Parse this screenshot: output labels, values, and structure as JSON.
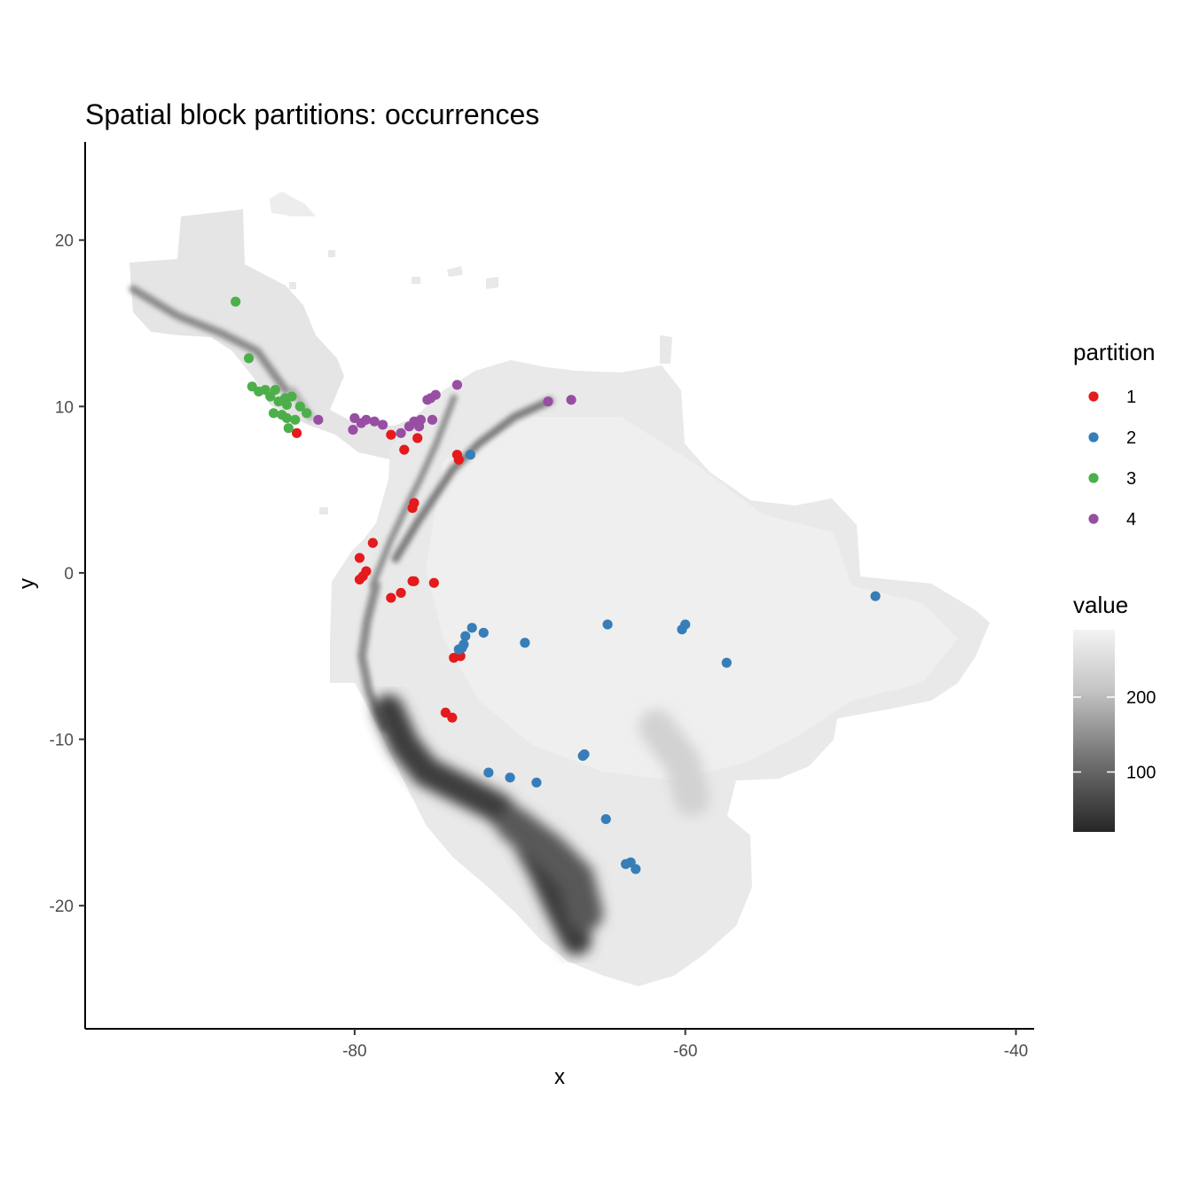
{
  "chart_data": {
    "type": "scatter",
    "title": "Spatial block partitions: occurrences",
    "xlabel": "x",
    "ylabel": "y",
    "xlim": [
      -96.3,
      -38.9
    ],
    "ylim": [
      -27.4,
      25.9
    ],
    "xticks": [
      -80,
      -60,
      -40
    ],
    "yticks": [
      -20,
      -10,
      0,
      10,
      20
    ],
    "grid": false,
    "background_raster": {
      "description_free": true,
      "legend_title": "value",
      "colorbar_ticks": [
        100,
        200
      ],
      "color_low": "#262626",
      "color_high": "#f3f3f3"
    },
    "legend": {
      "title": "partition",
      "position": "right",
      "entries": [
        {
          "label": "1",
          "color": "#e41a1c"
        },
        {
          "label": "2",
          "color": "#377eb8"
        },
        {
          "label": "3",
          "color": "#4daf4a"
        },
        {
          "label": "4",
          "color": "#984ea3"
        }
      ]
    },
    "series": [
      {
        "name": "1",
        "color": "#e41a1c",
        "points": [
          [
            -83.5,
            8.4
          ],
          [
            -77.8,
            8.3
          ],
          [
            -76.2,
            8.1
          ],
          [
            -77.0,
            7.4
          ],
          [
            -73.8,
            7.1
          ],
          [
            -73.7,
            6.8
          ],
          [
            -76.4,
            4.2
          ],
          [
            -76.5,
            3.9
          ],
          [
            -78.9,
            1.8
          ],
          [
            -79.7,
            0.9
          ],
          [
            -79.3,
            0.1
          ],
          [
            -79.5,
            -0.2
          ],
          [
            -79.7,
            -0.4
          ],
          [
            -76.5,
            -0.5
          ],
          [
            -76.4,
            -0.5
          ],
          [
            -75.2,
            -0.6
          ],
          [
            -77.2,
            -1.2
          ],
          [
            -77.8,
            -1.5
          ],
          [
            -74.0,
            -5.1
          ],
          [
            -73.6,
            -5.0
          ],
          [
            -74.5,
            -8.4
          ],
          [
            -74.1,
            -8.7
          ]
        ]
      },
      {
        "name": "2",
        "color": "#377eb8",
        "points": [
          [
            -73.0,
            7.1
          ],
          [
            -72.9,
            -3.3
          ],
          [
            -72.2,
            -3.6
          ],
          [
            -73.3,
            -3.8
          ],
          [
            -73.4,
            -4.3
          ],
          [
            -73.5,
            -4.5
          ],
          [
            -73.7,
            -4.6
          ],
          [
            -69.7,
            -4.2
          ],
          [
            -64.7,
            -3.1
          ],
          [
            -60.2,
            -3.4
          ],
          [
            -60.0,
            -3.1
          ],
          [
            -57.5,
            -5.4
          ],
          [
            -48.5,
            -1.4
          ],
          [
            -66.2,
            -11.0
          ],
          [
            -66.1,
            -10.9
          ],
          [
            -71.9,
            -12.0
          ],
          [
            -70.6,
            -12.3
          ],
          [
            -69.0,
            -12.6
          ],
          [
            -64.8,
            -14.8
          ],
          [
            -63.6,
            -17.5
          ],
          [
            -63.3,
            -17.4
          ],
          [
            -63.0,
            -17.8
          ]
        ]
      },
      {
        "name": "3",
        "color": "#4daf4a",
        "points": [
          [
            -87.2,
            16.3
          ],
          [
            -86.4,
            12.9
          ],
          [
            -86.2,
            11.2
          ],
          [
            -85.8,
            10.9
          ],
          [
            -85.4,
            11.0
          ],
          [
            -84.8,
            11.0
          ],
          [
            -85.1,
            10.6
          ],
          [
            -84.6,
            10.3
          ],
          [
            -84.2,
            10.5
          ],
          [
            -83.8,
            10.6
          ],
          [
            -84.1,
            10.1
          ],
          [
            -83.3,
            10.0
          ],
          [
            -84.9,
            9.6
          ],
          [
            -84.4,
            9.5
          ],
          [
            -84.1,
            9.3
          ],
          [
            -83.6,
            9.2
          ],
          [
            -82.9,
            9.6
          ],
          [
            -84.0,
            8.7
          ]
        ]
      },
      {
        "name": "4",
        "color": "#984ea3",
        "points": [
          [
            -82.2,
            9.2
          ],
          [
            -80.0,
            9.3
          ],
          [
            -79.6,
            9.0
          ],
          [
            -79.3,
            9.2
          ],
          [
            -78.8,
            9.1
          ],
          [
            -78.3,
            8.9
          ],
          [
            -80.1,
            8.6
          ],
          [
            -77.2,
            8.4
          ],
          [
            -76.7,
            8.8
          ],
          [
            -76.4,
            9.1
          ],
          [
            -76.1,
            8.8
          ],
          [
            -76.0,
            9.2
          ],
          [
            -76.2,
            9.0
          ],
          [
            -75.3,
            9.2
          ],
          [
            -75.6,
            10.4
          ],
          [
            -75.4,
            10.5
          ],
          [
            -75.1,
            10.7
          ],
          [
            -73.8,
            11.3
          ],
          [
            -68.3,
            10.3
          ],
          [
            -66.9,
            10.4
          ]
        ]
      }
    ]
  }
}
